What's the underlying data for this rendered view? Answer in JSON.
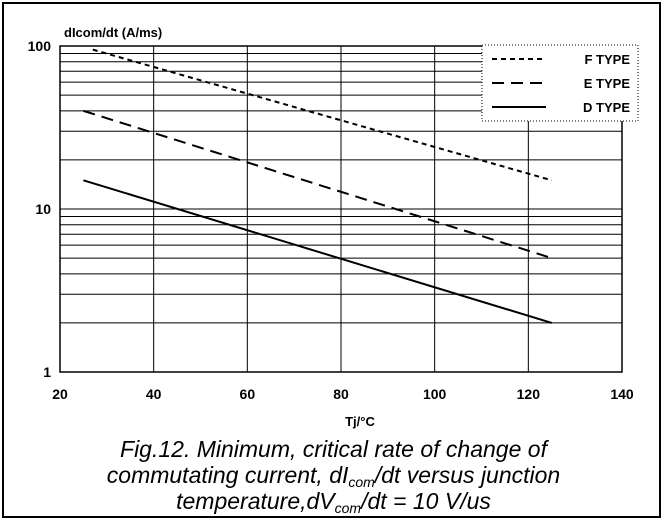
{
  "chart_data": {
    "type": "line",
    "y_scale": "log",
    "ylabel": "dIcom/dt (A/ms)",
    "xlabel": "Tj/°C",
    "xlim": [
      20,
      140
    ],
    "ylim": [
      1,
      100
    ],
    "x_ticks": [
      "20",
      "40",
      "60",
      "80",
      "100",
      "120",
      "140"
    ],
    "y_ticks": [
      "1",
      "10",
      "100"
    ],
    "grid": true,
    "legend_position": "top-right",
    "series": [
      {
        "name": "F TYPE",
        "style": "dotted",
        "x": [
          27,
          125
        ],
        "y": [
          95,
          15
        ]
      },
      {
        "name": "E TYPE",
        "style": "dashed",
        "x": [
          25,
          125
        ],
        "y": [
          40,
          5
        ]
      },
      {
        "name": "D TYPE",
        "style": "solid",
        "x": [
          25,
          125
        ],
        "y": [
          15,
          2
        ]
      }
    ]
  },
  "caption": {
    "line1": "Fig.12.  Minimum, critical rate of change of",
    "line2_pre": "commutating current, dI",
    "line2_sub": "com",
    "line2_post": "/dt versus junction",
    "line3_pre": "temperature,dV",
    "line3_sub": "com",
    "line3_post": "/dt = 10 V/us"
  }
}
